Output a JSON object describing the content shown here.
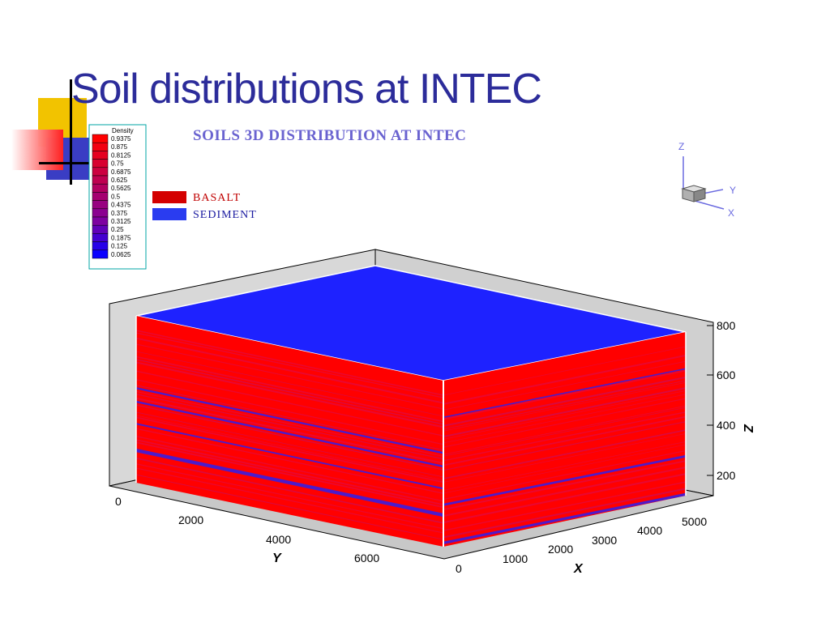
{
  "slide": {
    "title": "Soil distributions at INTEC"
  },
  "chart_data": {
    "type": "3d-volume",
    "title": "SOILS 3D DISTRIBUTION AT INTEC",
    "legend": [
      {
        "name": "BASALT",
        "color": "#d40000"
      },
      {
        "name": "SEDIMENT",
        "color": "#2a3cf0"
      }
    ],
    "colorbar": {
      "label": "Density",
      "levels": [
        "0.9375",
        "0.875",
        "0.8125",
        "0.75",
        "0.6875",
        "0.625",
        "0.5625",
        "0.5",
        "0.4375",
        "0.375",
        "0.3125",
        "0.25",
        "0.1875",
        "0.125",
        "0.0625"
      ],
      "colors": [
        "#ff0000",
        "#f20010",
        "#e50020",
        "#d80030",
        "#cc0040",
        "#bf0050",
        "#b20060",
        "#a50070",
        "#980080",
        "#8b0090",
        "#7e00a0",
        "#6100b8",
        "#4400d0",
        "#2700e8",
        "#0a00ff"
      ]
    },
    "axes": {
      "x": {
        "label": "X",
        "ticks": [
          "0",
          "1000",
          "2000",
          "3000",
          "4000",
          "5000"
        ]
      },
      "y": {
        "label": "Y",
        "ticks": [
          "0",
          "2000",
          "4000",
          "6000"
        ]
      },
      "z": {
        "label": "Z",
        "ticks": [
          "200",
          "400",
          "600",
          "800"
        ]
      }
    },
    "orientation": {
      "z": "Z",
      "y": "Y",
      "x": "X"
    }
  },
  "colors": {
    "title": "#2c2c9a",
    "basalt": "#ff0000",
    "sediment": "#1e22ff",
    "frame": "#d8d8d8"
  }
}
